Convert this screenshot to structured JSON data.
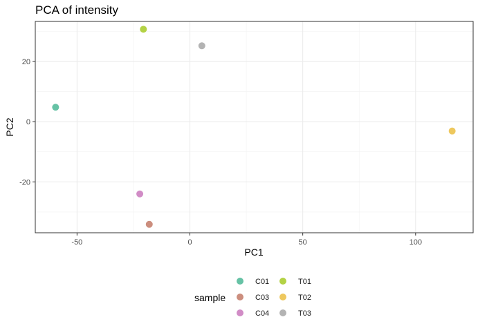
{
  "chart_data": {
    "type": "scatter",
    "title": "PCA of intensity",
    "xlabel": "PC1",
    "ylabel": "PC2",
    "xlim": [
      -68.5,
      125.5
    ],
    "ylim": [
      -36.9,
      33.3
    ],
    "x_ticks": [
      -50,
      0,
      50,
      100
    ],
    "y_ticks": [
      -20,
      0,
      20
    ],
    "x_tick_labels": [
      "-50",
      "0",
      "50",
      "100"
    ],
    "y_tick_labels": [
      "-20",
      "0",
      "20"
    ],
    "grid": true,
    "legend_position": "bottom",
    "legend_title": "sample",
    "series": [
      {
        "name": "C01",
        "color": "#66c2a5",
        "x": -59.5,
        "y": 4.8
      },
      {
        "name": "C03",
        "color": "#cc8e7e",
        "x": -18.0,
        "y": -34.1
      },
      {
        "name": "C04",
        "color": "#d18cc6",
        "x": -22.2,
        "y": -24.0
      },
      {
        "name": "T01",
        "color": "#b3d245",
        "x": -20.6,
        "y": 30.7
      },
      {
        "name": "T02",
        "color": "#eec85e",
        "x": 116.2,
        "y": -3.1
      },
      {
        "name": "T03",
        "color": "#b3b3b3",
        "x": 5.3,
        "y": 25.2
      }
    ]
  }
}
